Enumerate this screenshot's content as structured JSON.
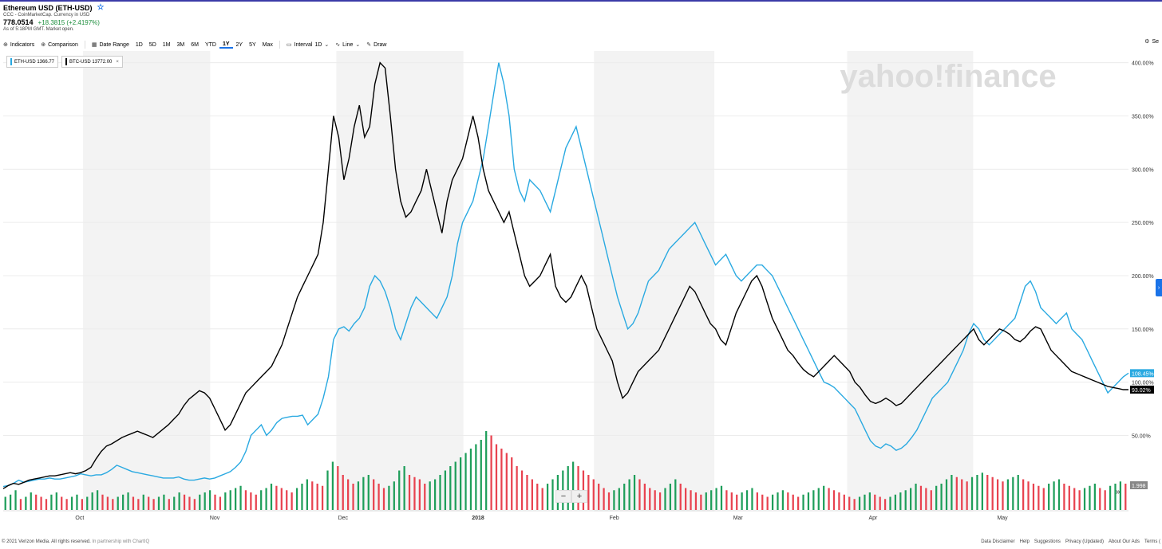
{
  "header": {
    "title": "Ethereum USD (ETH-USD)",
    "source": "CCC - CoinMarketCap. Currency in USD",
    "price": "778.0514",
    "change": "+18.3815 (+2.4197%)",
    "as_of": "As of 5:18PM GMT. Market open."
  },
  "toolbar": {
    "indicators": "Indicators",
    "comparison": "Comparison",
    "date_range": "Date Range",
    "ranges": [
      "1D",
      "5D",
      "1M",
      "3M",
      "6M",
      "YTD",
      "1Y",
      "2Y",
      "5Y",
      "Max"
    ],
    "selected_range": "1Y",
    "interval": "Interval",
    "interval_value": "1D",
    "line": "Line",
    "draw": "Draw",
    "settings": "Se"
  },
  "legend": {
    "eth": "ETH-USD  1366.77",
    "btc": "BTC-USD  13772.00"
  },
  "watermark": "yahoo!finance",
  "footer": {
    "copyright": "© 2021 Verizon Media. All rights reserved.",
    "partner": "In partnership with ChartIQ",
    "links": [
      "Data Disclaimer",
      "Help",
      "Suggestions",
      "Privacy (Updated)",
      "About Our Ads",
      "Terms ("
    ]
  },
  "colors": {
    "eth": "#29a9e1",
    "btc": "#000000",
    "up": "#1e9e5a",
    "down": "#e8424f",
    "band": "#f3f3f3"
  },
  "chart_data": {
    "type": "line",
    "y_axis_unit": "%",
    "yticks": [
      50,
      100,
      150,
      200,
      250,
      300,
      350,
      400
    ],
    "ytick_labels": [
      "50.00%",
      "100.00%",
      "150.00%",
      "200.00%",
      "250.00%",
      "300.00%",
      "350.00%",
      "400.00%"
    ],
    "ylim": [
      -20,
      405
    ],
    "x_labels": [
      "Oct",
      "Nov",
      "Dec",
      "2018",
      "Feb",
      "Mar",
      "Apr",
      "May"
    ],
    "series": [
      {
        "name": "ETH-USD",
        "last_label": "108.45%",
        "values": [
          2,
          3,
          5,
          8,
          6,
          7,
          8,
          9,
          9,
          10,
          9,
          9,
          10,
          11,
          12,
          14,
          13,
          12,
          13,
          13,
          15,
          18,
          22,
          20,
          18,
          16,
          15,
          14,
          13,
          12,
          11,
          10,
          10,
          10,
          11,
          9,
          8,
          8,
          9,
          10,
          9,
          10,
          12,
          14,
          16,
          20,
          25,
          35,
          50,
          55,
          60,
          50,
          55,
          62,
          66,
          67,
          68,
          68,
          69,
          60,
          65,
          70,
          85,
          105,
          140,
          150,
          152,
          148,
          155,
          160,
          170,
          190,
          200,
          195,
          185,
          170,
          150,
          140,
          155,
          170,
          180,
          175,
          170,
          165,
          160,
          170,
          180,
          200,
          230,
          250,
          260,
          270,
          290,
          310,
          340,
          370,
          400,
          380,
          350,
          300,
          280,
          270,
          290,
          285,
          280,
          270,
          260,
          280,
          300,
          320,
          330,
          340,
          320,
          300,
          280,
          260,
          240,
          220,
          200,
          180,
          165,
          150,
          155,
          165,
          180,
          195,
          200,
          205,
          215,
          225,
          230,
          235,
          240,
          245,
          250,
          240,
          230,
          220,
          210,
          215,
          220,
          210,
          200,
          195,
          200,
          205,
          210,
          210,
          205,
          200,
          190,
          180,
          170,
          160,
          150,
          140,
          130,
          120,
          110,
          100,
          98,
          95,
          90,
          85,
          80,
          75,
          65,
          55,
          45,
          40,
          38,
          42,
          40,
          36,
          38,
          42,
          48,
          55,
          65,
          75,
          85,
          90,
          95,
          100,
          110,
          120,
          130,
          145,
          155,
          150,
          140,
          135,
          140,
          145,
          150,
          155,
          160,
          175,
          190,
          195,
          185,
          170,
          165,
          160,
          155,
          160,
          165,
          150,
          145,
          140,
          130,
          120,
          110,
          100,
          90,
          95,
          100,
          105,
          108.45
        ]
      },
      {
        "name": "BTC-USD",
        "last_label": "93.02%",
        "values": [
          0,
          3,
          5,
          4,
          6,
          8,
          9,
          10,
          11,
          12,
          12,
          13,
          14,
          15,
          14,
          15,
          17,
          20,
          28,
          35,
          40,
          42,
          45,
          48,
          50,
          52,
          54,
          52,
          50,
          48,
          52,
          56,
          60,
          65,
          70,
          78,
          84,
          88,
          92,
          90,
          85,
          75,
          65,
          55,
          60,
          70,
          80,
          90,
          95,
          100,
          105,
          110,
          115,
          125,
          135,
          150,
          165,
          180,
          190,
          200,
          210,
          220,
          250,
          300,
          350,
          330,
          290,
          310,
          340,
          360,
          330,
          340,
          380,
          400,
          395,
          350,
          300,
          270,
          255,
          260,
          270,
          280,
          300,
          280,
          260,
          240,
          270,
          290,
          300,
          310,
          330,
          350,
          330,
          300,
          280,
          270,
          260,
          250,
          260,
          240,
          220,
          200,
          190,
          195,
          200,
          210,
          220,
          190,
          180,
          175,
          180,
          190,
          200,
          190,
          170,
          150,
          140,
          130,
          120,
          100,
          85,
          90,
          100,
          110,
          115,
          120,
          125,
          130,
          140,
          150,
          160,
          170,
          180,
          190,
          185,
          175,
          165,
          155,
          150,
          140,
          135,
          150,
          165,
          175,
          185,
          195,
          200,
          190,
          175,
          160,
          150,
          140,
          130,
          125,
          118,
          112,
          108,
          105,
          110,
          115,
          120,
          125,
          120,
          115,
          110,
          100,
          95,
          88,
          82,
          80,
          82,
          85,
          82,
          78,
          80,
          85,
          90,
          95,
          100,
          105,
          110,
          115,
          120,
          125,
          130,
          135,
          140,
          145,
          150,
          140,
          135,
          140,
          145,
          150,
          148,
          145,
          140,
          138,
          142,
          148,
          152,
          150,
          140,
          130,
          125,
          120,
          115,
          110,
          108,
          106,
          104,
          102,
          100,
          98,
          96,
          95,
          94,
          93,
          93.02
        ]
      }
    ],
    "volume_label": "1.998",
    "volume": [
      6,
      7,
      9,
      5,
      6,
      8,
      7,
      6,
      5,
      7,
      8,
      6,
      5,
      6,
      7,
      5,
      6,
      8,
      9,
      7,
      6,
      5,
      6,
      7,
      8,
      6,
      5,
      7,
      6,
      5,
      6,
      7,
      5,
      6,
      8,
      7,
      6,
      5,
      7,
      8,
      9,
      7,
      6,
      8,
      9,
      10,
      11,
      9,
      8,
      7,
      9,
      10,
      12,
      11,
      10,
      9,
      8,
      10,
      12,
      14,
      13,
      12,
      11,
      18,
      22,
      20,
      16,
      14,
      12,
      13,
      15,
      16,
      14,
      12,
      10,
      11,
      13,
      18,
      20,
      16,
      15,
      14,
      12,
      13,
      14,
      16,
      18,
      20,
      22,
      24,
      26,
      28,
      30,
      32,
      36,
      34,
      30,
      28,
      26,
      24,
      20,
      18,
      16,
      14,
      12,
      10,
      12,
      14,
      16,
      18,
      20,
      22,
      20,
      18,
      16,
      14,
      12,
      10,
      8,
      9,
      10,
      12,
      14,
      16,
      14,
      12,
      10,
      9,
      8,
      10,
      12,
      14,
      12,
      10,
      9,
      8,
      7,
      8,
      9,
      10,
      11,
      9,
      8,
      7,
      8,
      9,
      10,
      8,
      7,
      6,
      7,
      8,
      9,
      8,
      7,
      6,
      7,
      8,
      9,
      10,
      11,
      10,
      9,
      8,
      7,
      6,
      5,
      6,
      7,
      8,
      7,
      6,
      5,
      6,
      7,
      8,
      9,
      10,
      12,
      11,
      10,
      9,
      11,
      12,
      14,
      16,
      15,
      14,
      13,
      15,
      16,
      17,
      16,
      15,
      14,
      13,
      14,
      15,
      16,
      14,
      13,
      12,
      11,
      10,
      12,
      13,
      14,
      12,
      11,
      10,
      9,
      10,
      11,
      12,
      10,
      9,
      11,
      12,
      13,
      12
    ],
    "bands": [
      [
        0.071,
        0.184
      ],
      [
        0.296,
        0.409
      ],
      [
        0.525,
        0.632
      ],
      [
        0.75,
        0.862
      ]
    ]
  }
}
